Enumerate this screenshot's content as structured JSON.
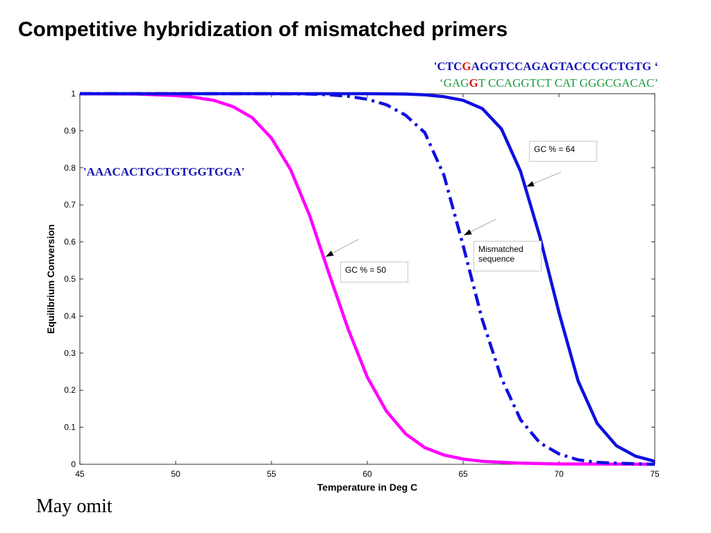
{
  "slide": {
    "title": "Competitive hybridization of mismatched primers",
    "note": "May omit"
  },
  "sequences": {
    "top_line": {
      "open": "'",
      "a": "CTC",
      "mut": "G",
      "b": "AGGTCCAGAGTACCCGCTGTG",
      "close": " ‘"
    },
    "bottom_line": {
      "open": "‘",
      "a": "GAG",
      "mut": "G",
      "b": "T CCAGGTCT CAT GGGCGACAC",
      "close": "’"
    },
    "left_label": "'AAACACTGCTGTGGTGGA'"
  },
  "colors": {
    "gc50": "#ff00ff",
    "gc64": "#1010e0",
    "mismatched": "#1010e0",
    "seq_blue": "#1414b4",
    "seq_green": "#1a9c3c",
    "mutation_red": "#e01010"
  },
  "chart_data": {
    "type": "line",
    "xlabel": "Temperature in Deg C",
    "ylabel": "Equilibrium Conversion",
    "xlim": [
      45,
      75
    ],
    "ylim": [
      0,
      1
    ],
    "xticks": [
      45,
      50,
      55,
      60,
      65,
      70,
      75
    ],
    "yticks": [
      0,
      0.1,
      0.2,
      0.3,
      0.4,
      0.5,
      0.6,
      0.7,
      0.8,
      0.9,
      1
    ],
    "ytick_labels": [
      "0",
      "0.1",
      "0.2",
      "0.3",
      "0.4",
      "0.5",
      "0.6",
      "0.7",
      "0.8",
      "0.9",
      "1"
    ],
    "grid": false,
    "series": [
      {
        "key": "gc50",
        "color": "#ff00ff",
        "style": "solid",
        "x": [
          45,
          48,
          50,
          51,
          52,
          53,
          54,
          55,
          56,
          57,
          58,
          59,
          60,
          61,
          62,
          63,
          64,
          65,
          66,
          68,
          70,
          75
        ],
        "y": [
          1.0,
          0.999,
          0.995,
          0.99,
          0.982,
          0.965,
          0.935,
          0.88,
          0.795,
          0.67,
          0.515,
          0.365,
          0.235,
          0.143,
          0.082,
          0.045,
          0.025,
          0.014,
          0.008,
          0.003,
          0.001,
          0.0
        ]
      },
      {
        "key": "gc64",
        "color": "#1010e0",
        "style": "solid",
        "x": [
          45,
          55,
          60,
          62,
          63,
          64,
          65,
          66,
          67,
          68,
          69,
          70,
          71,
          72,
          73,
          74,
          75
        ],
        "y": [
          1.0,
          1.0,
          1.0,
          0.999,
          0.997,
          0.992,
          0.982,
          0.96,
          0.905,
          0.79,
          0.615,
          0.41,
          0.225,
          0.11,
          0.05,
          0.022,
          0.008
        ]
      },
      {
        "key": "mismatched",
        "color": "#1010e0",
        "style": "dashdot",
        "x": [
          45,
          55,
          57,
          58,
          59,
          60,
          61,
          62,
          63,
          64,
          65,
          66,
          67,
          68,
          69,
          70,
          71,
          72,
          73,
          75
        ],
        "y": [
          1.0,
          1.0,
          0.999,
          0.997,
          0.993,
          0.985,
          0.97,
          0.942,
          0.895,
          0.78,
          0.59,
          0.39,
          0.232,
          0.12,
          0.058,
          0.028,
          0.012,
          0.005,
          0.003,
          0.0
        ]
      }
    ],
    "annotations": [
      {
        "key": "gc64",
        "text": "GC % = 64"
      },
      {
        "key": "gc50",
        "text": "GC % = 50"
      },
      {
        "key": "mismatched",
        "text": "Mismatched sequence"
      }
    ]
  }
}
